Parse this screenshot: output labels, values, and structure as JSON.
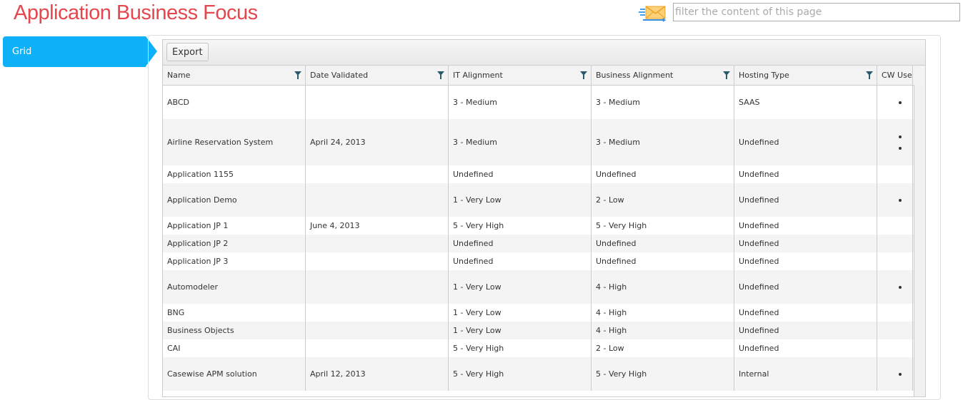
{
  "header": {
    "title": "Application Business Focus",
    "filter_placeholder": "filter the content of this page",
    "mail_icon": "mail-send-icon"
  },
  "sidebar": {
    "active_tab": "Grid"
  },
  "toolbar": {
    "export_label": "Export"
  },
  "columns": [
    "Name",
    "Date Validated",
    "IT Alignment",
    "Business Alignment",
    "Hosting Type",
    "CW Use"
  ],
  "rows": [
    {
      "name": "ABCD",
      "date": "",
      "it": "3 - Medium",
      "biz": "3 - Medium",
      "hosting": "SAAS",
      "cw_bullets": 1
    },
    {
      "name": "Airline Reservation System",
      "date": "April 24, 2013",
      "it": "3 - Medium",
      "biz": "3 - Medium",
      "hosting": "Undefined",
      "cw_bullets": 2
    },
    {
      "name": "Application 1155",
      "date": "",
      "it": "Undefined",
      "biz": "Undefined",
      "hosting": "Undefined",
      "cw_bullets": 0
    },
    {
      "name": "Application Demo",
      "date": "",
      "it": "1 - Very Low",
      "biz": "2 - Low",
      "hosting": "Undefined",
      "cw_bullets": 1
    },
    {
      "name": "Application JP 1",
      "date": "June 4, 2013",
      "it": "5 - Very High",
      "biz": "5 - Very High",
      "hosting": "Undefined",
      "cw_bullets": 0
    },
    {
      "name": "Application JP 2",
      "date": "",
      "it": "Undefined",
      "biz": "Undefined",
      "hosting": "Undefined",
      "cw_bullets": 0
    },
    {
      "name": "Application JP 3",
      "date": "",
      "it": "Undefined",
      "biz": "Undefined",
      "hosting": "Undefined",
      "cw_bullets": 0
    },
    {
      "name": "Automodeler",
      "date": "",
      "it": "1 - Very Low",
      "biz": "4 - High",
      "hosting": "Undefined",
      "cw_bullets": 1
    },
    {
      "name": "BNG",
      "date": "",
      "it": "1 - Very Low",
      "biz": "4 - High",
      "hosting": "Undefined",
      "cw_bullets": 0
    },
    {
      "name": "Business Objects",
      "date": "",
      "it": "1 - Very Low",
      "biz": "4 - High",
      "hosting": "Undefined",
      "cw_bullets": 0
    },
    {
      "name": "CAI",
      "date": "",
      "it": "5 - Very High",
      "biz": "2 - Low",
      "hosting": "Undefined",
      "cw_bullets": 0
    },
    {
      "name": "Casewise APM solution",
      "date": "April 12, 2013",
      "it": "5 - Very High",
      "biz": "5 - Very High",
      "hosting": "Internal",
      "cw_bullets": 1
    }
  ]
}
